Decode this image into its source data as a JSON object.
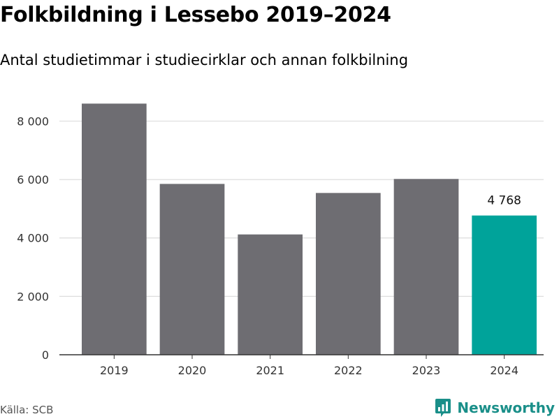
{
  "header": {
    "title": "Folkbildning i Lessebo 2019–2024",
    "subtitle": "Antal studietimmar i studiecirklar och annan folkbilning"
  },
  "footer": {
    "source": "Källa: SCB",
    "brand": "Newsworthy",
    "brand_icon": "bar-chart-logo-icon"
  },
  "colors": {
    "bar": "#6e6d72",
    "highlight": "#00a39a",
    "grid": "#dddddd",
    "axis": "#333333",
    "brand": "#1a8f89"
  },
  "chart_data": {
    "type": "bar",
    "title": "Folkbildning i Lessebo 2019–2024",
    "subtitle": "Antal studietimmar i studiecirklar och annan folkbilning",
    "categories": [
      "2019",
      "2020",
      "2021",
      "2022",
      "2023",
      "2024"
    ],
    "values": [
      8600,
      5850,
      4120,
      5540,
      6020,
      4768
    ],
    "highlight_index": 5,
    "data_labels": [
      {
        "index": 5,
        "text": "4 768"
      }
    ],
    "ylim": [
      0,
      8800
    ],
    "yticks": [
      0,
      2000,
      4000,
      6000,
      8000
    ],
    "ytick_labels": [
      "0",
      "2 000",
      "4 000",
      "6 000",
      "8 000"
    ],
    "grid": true,
    "legend": "none"
  }
}
